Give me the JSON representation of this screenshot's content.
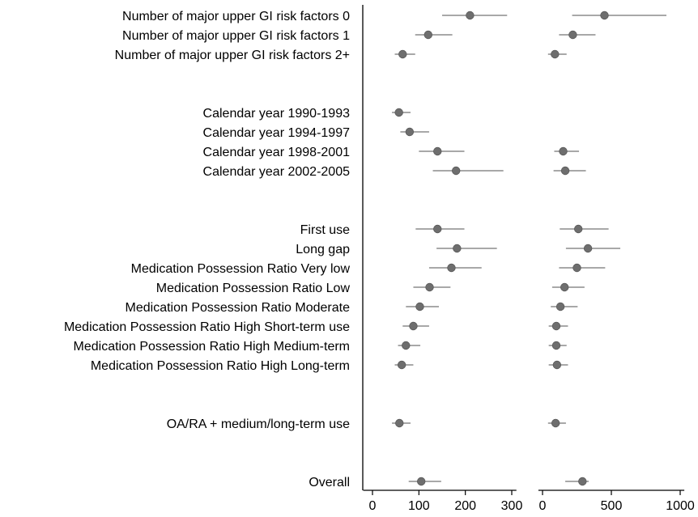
{
  "chart_data": {
    "type": "scatter",
    "subtype": "forest-plot",
    "title": "",
    "grid": false,
    "legend": "none",
    "colors": {
      "point": "#6e6e6e",
      "ci": "#a8a8a8",
      "axis": "#000000"
    },
    "rows": [
      {
        "label": "Number of major upper GI risk factors 0",
        "group": 1
      },
      {
        "label": "Number of major upper GI risk factors 1",
        "group": 1
      },
      {
        "label": "Number of major upper GI risk factors 2+",
        "group": 1
      },
      {
        "label": "Calendar year 1990-1993",
        "group": 2
      },
      {
        "label": "Calendar year 1994-1997",
        "group": 2
      },
      {
        "label": "Calendar year 1998-2001",
        "group": 2
      },
      {
        "label": "Calendar year 2002-2005",
        "group": 2
      },
      {
        "label": "First use",
        "group": 3
      },
      {
        "label": "Long gap",
        "group": 3
      },
      {
        "label": "Medication Possession Ratio Very low",
        "group": 3
      },
      {
        "label": "Medication Possession Ratio Low",
        "group": 3
      },
      {
        "label": "Medication Possession Ratio Moderate",
        "group": 3
      },
      {
        "label": "Medication Possession Ratio High Short-term use",
        "group": 3
      },
      {
        "label": "Medication Possession Ratio High Medium-term",
        "group": 3
      },
      {
        "label": "Medication Possession Ratio High Long-term",
        "group": 3
      },
      {
        "label": "OA/RA + medium/long-term use",
        "group": 4
      },
      {
        "label": "Overall",
        "group": 5
      }
    ],
    "panels": [
      {
        "xlim": [
          -20,
          310
        ],
        "ticks": [
          0,
          100,
          200,
          300
        ],
        "estimates": [
          210,
          120,
          65,
          57,
          80,
          140,
          180,
          140,
          182,
          170,
          123,
          102,
          88,
          72,
          63,
          58,
          105
        ],
        "ci_low": [
          150,
          92,
          48,
          42,
          60,
          100,
          130,
          93,
          138,
          122,
          88,
          72,
          65,
          55,
          48,
          42,
          78
        ],
        "ci_high": [
          290,
          172,
          92,
          82,
          122,
          198,
          282,
          198,
          268,
          235,
          168,
          143,
          122,
          103,
          88,
          82,
          148
        ]
      },
      {
        "xlim": [
          -30,
          1030
        ],
        "ticks": [
          0,
          500,
          1000
        ],
        "estimates": [
          450,
          220,
          90,
          null,
          null,
          150,
          165,
          260,
          330,
          250,
          160,
          130,
          100,
          100,
          105,
          95,
          290
        ],
        "ci_low": [
          215,
          120,
          40,
          null,
          null,
          85,
          80,
          125,
          170,
          120,
          70,
          60,
          45,
          45,
          45,
          40,
          165
        ],
        "ci_high": [
          900,
          385,
          175,
          null,
          null,
          265,
          315,
          480,
          565,
          455,
          305,
          255,
          185,
          175,
          185,
          170,
          335
        ]
      }
    ]
  }
}
